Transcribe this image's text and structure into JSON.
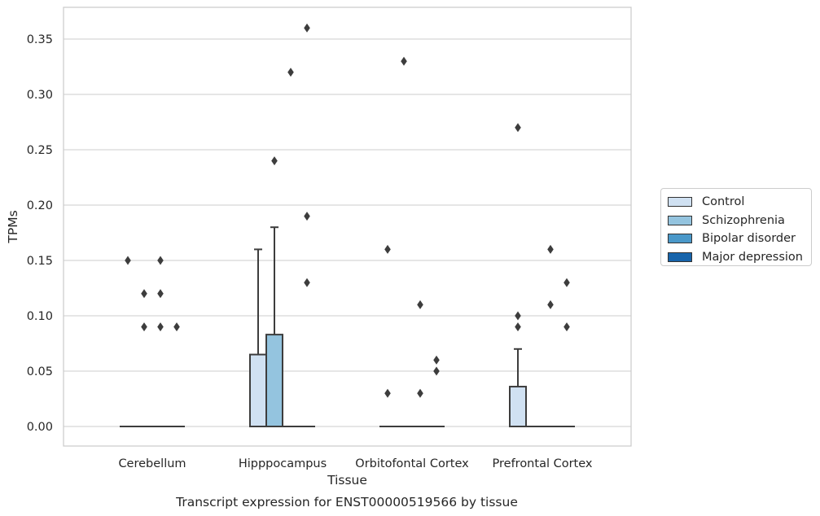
{
  "chart_data": {
    "type": "box",
    "title": "Transcript expression for ENST00000519566 by tissue",
    "xlabel": "Tissue",
    "ylabel": "TPMs",
    "ylim": [
      -0.018,
      0.378
    ],
    "yticks": [
      0.0,
      0.05,
      0.1,
      0.15,
      0.2,
      0.25,
      0.3,
      0.35
    ],
    "ytick_labels": [
      "0.00",
      "0.05",
      "0.10",
      "0.15",
      "0.20",
      "0.25",
      "0.30",
      "0.35"
    ],
    "grid": "horizontal",
    "legend_position": "right",
    "categories": [
      "Cerebellum",
      "Hipppocampus",
      "Orbitofontal Cortex",
      "Prefrontal Cortex"
    ],
    "series": [
      {
        "name": "Control",
        "color": "#d0e1f2",
        "boxes": [
          {
            "q1": 0,
            "median": 0,
            "q3": 0,
            "whisker_low": 0,
            "whisker_high": 0,
            "outliers": [
              0.15
            ]
          },
          {
            "q1": 0,
            "median": 0,
            "q3": 0.065,
            "whisker_low": 0,
            "whisker_high": 0.16,
            "outliers": []
          },
          {
            "q1": 0,
            "median": 0,
            "q3": 0,
            "whisker_low": 0,
            "whisker_high": 0,
            "outliers": [
              0.16,
              0.03
            ]
          },
          {
            "q1": 0,
            "median": 0,
            "q3": 0.036,
            "whisker_low": 0,
            "whisker_high": 0.07,
            "outliers": [
              0.27,
              0.1,
              0.09
            ]
          }
        ]
      },
      {
        "name": "Schizophrenia",
        "color": "#94c4df",
        "boxes": [
          {
            "q1": 0,
            "median": 0,
            "q3": 0,
            "whisker_low": 0,
            "whisker_high": 0,
            "outliers": [
              0.12,
              0.09
            ]
          },
          {
            "q1": 0,
            "median": 0,
            "q3": 0.083,
            "whisker_low": 0,
            "whisker_high": 0.18,
            "outliers": [
              0.24
            ]
          },
          {
            "q1": 0,
            "median": 0,
            "q3": 0,
            "whisker_low": 0,
            "whisker_high": 0,
            "outliers": [
              0.33
            ]
          },
          {
            "q1": 0,
            "median": 0,
            "q3": 0,
            "whisker_low": 0,
            "whisker_high": 0,
            "outliers": []
          }
        ]
      },
      {
        "name": "Bipolar disorder",
        "color": "#4a98c9",
        "boxes": [
          {
            "q1": 0,
            "median": 0,
            "q3": 0,
            "whisker_low": 0,
            "whisker_high": 0,
            "outliers": [
              0.15,
              0.12,
              0.09
            ]
          },
          {
            "q1": 0,
            "median": 0,
            "q3": 0,
            "whisker_low": 0,
            "whisker_high": 0,
            "outliers": [
              0.32
            ]
          },
          {
            "q1": 0,
            "median": 0,
            "q3": 0,
            "whisker_low": 0,
            "whisker_high": 0,
            "outliers": [
              0.11,
              0.03
            ]
          },
          {
            "q1": 0,
            "median": 0,
            "q3": 0,
            "whisker_low": 0,
            "whisker_high": 0,
            "outliers": [
              0.16,
              0.11
            ]
          }
        ]
      },
      {
        "name": "Major depression",
        "color": "#1764ab",
        "boxes": [
          {
            "q1": 0,
            "median": 0,
            "q3": 0,
            "whisker_low": 0,
            "whisker_high": 0,
            "outliers": [
              0.09
            ]
          },
          {
            "q1": 0,
            "median": 0,
            "q3": 0,
            "whisker_low": 0,
            "whisker_high": 0,
            "outliers": [
              0.36,
              0.19,
              0.13
            ]
          },
          {
            "q1": 0,
            "median": 0,
            "q3": 0,
            "whisker_low": 0,
            "whisker_high": 0,
            "outliers": [
              0.06,
              0.05
            ]
          },
          {
            "q1": 0,
            "median": 0,
            "q3": 0,
            "whisker_low": 0,
            "whisker_high": 0,
            "outliers": [
              0.13,
              0.09
            ]
          }
        ]
      }
    ]
  }
}
